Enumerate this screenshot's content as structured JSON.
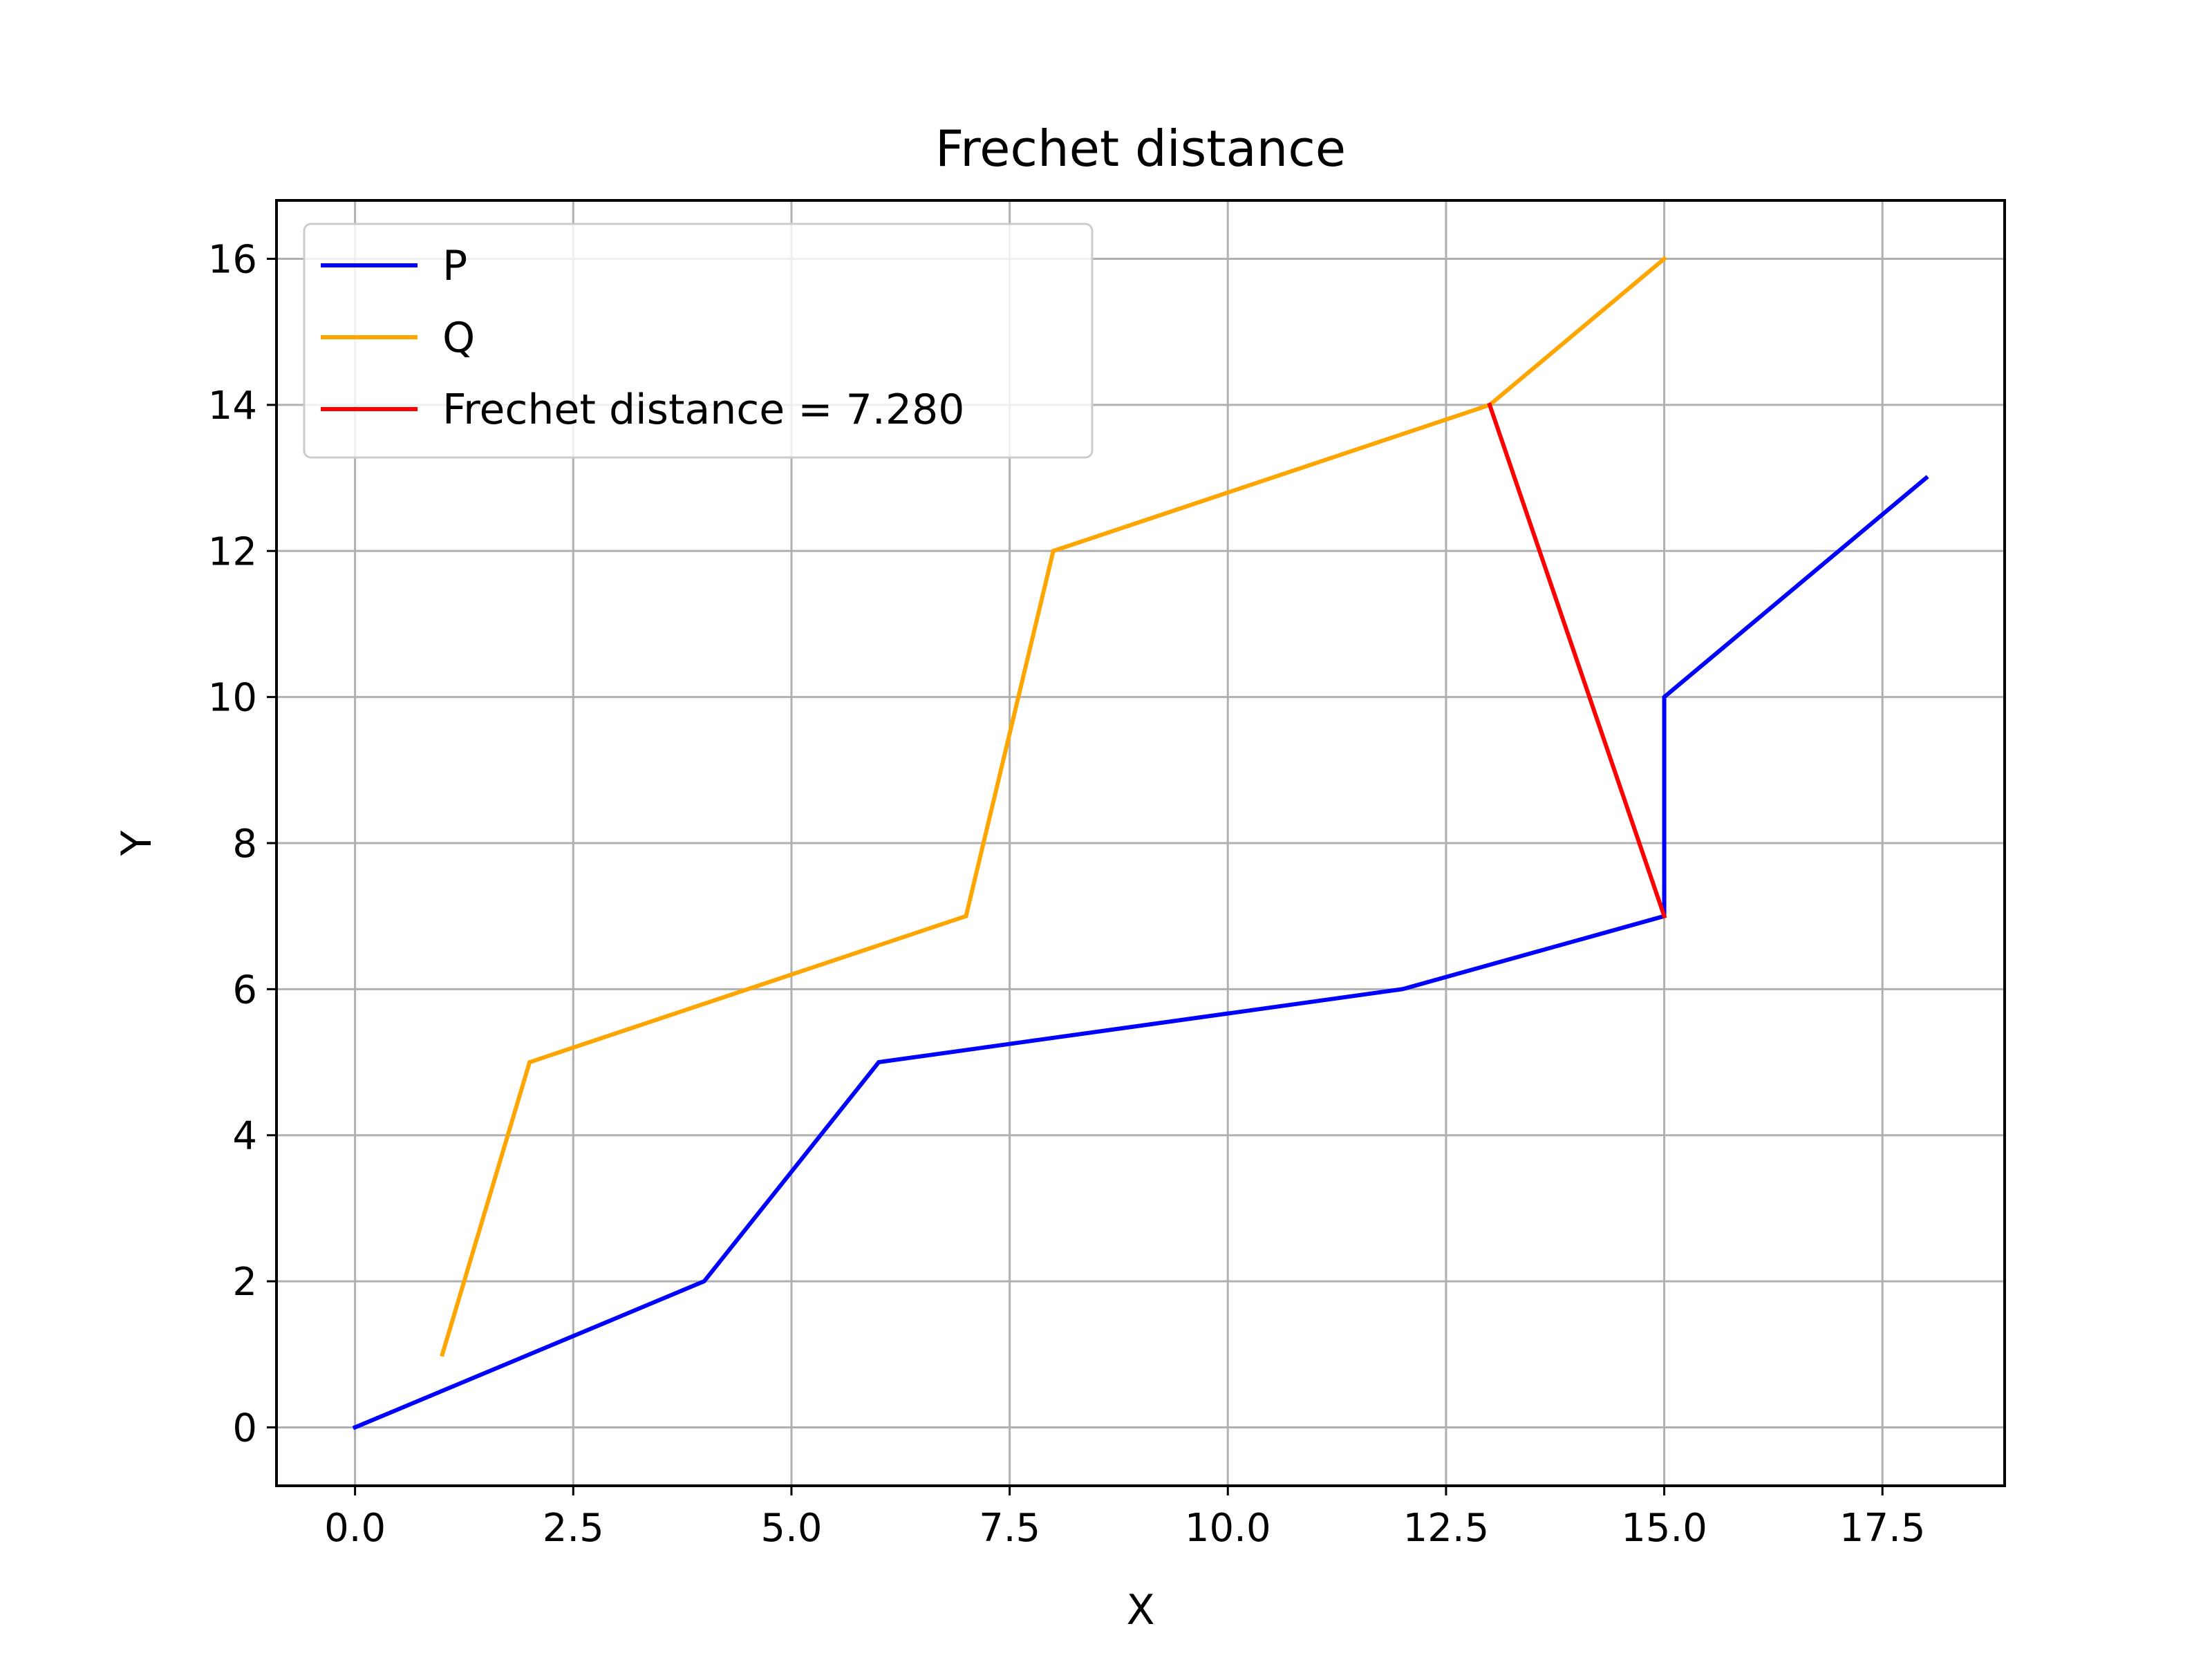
{
  "chart_data": {
    "type": "line",
    "title": "Frechet distance",
    "xlabel": "X",
    "ylabel": "Y",
    "xlim": [
      -0.9,
      18.9
    ],
    "ylim": [
      -0.8,
      16.8
    ],
    "xticks": [
      "0.0",
      "2.5",
      "5.0",
      "7.5",
      "10.0",
      "12.5",
      "15.0",
      "17.5"
    ],
    "yticks": [
      "0",
      "2",
      "4",
      "6",
      "8",
      "10",
      "12",
      "14",
      "16"
    ],
    "grid": true,
    "legend_position": "upper-left",
    "series": [
      {
        "name": "P",
        "color": "#0000ff",
        "points": [
          [
            0,
            0
          ],
          [
            4,
            2
          ],
          [
            6,
            5
          ],
          [
            12,
            6
          ],
          [
            15,
            7
          ],
          [
            15,
            10
          ],
          [
            18,
            13
          ]
        ]
      },
      {
        "name": "Q",
        "color": "#ffa500",
        "points": [
          [
            1,
            1
          ],
          [
            2,
            5
          ],
          [
            7,
            7
          ],
          [
            8,
            12
          ],
          [
            13,
            14
          ],
          [
            15,
            16
          ]
        ]
      },
      {
        "name": "Frechet distance = 7.280",
        "color": "#ff0000",
        "points": [
          [
            15,
            7
          ],
          [
            13,
            14
          ]
        ]
      }
    ]
  }
}
